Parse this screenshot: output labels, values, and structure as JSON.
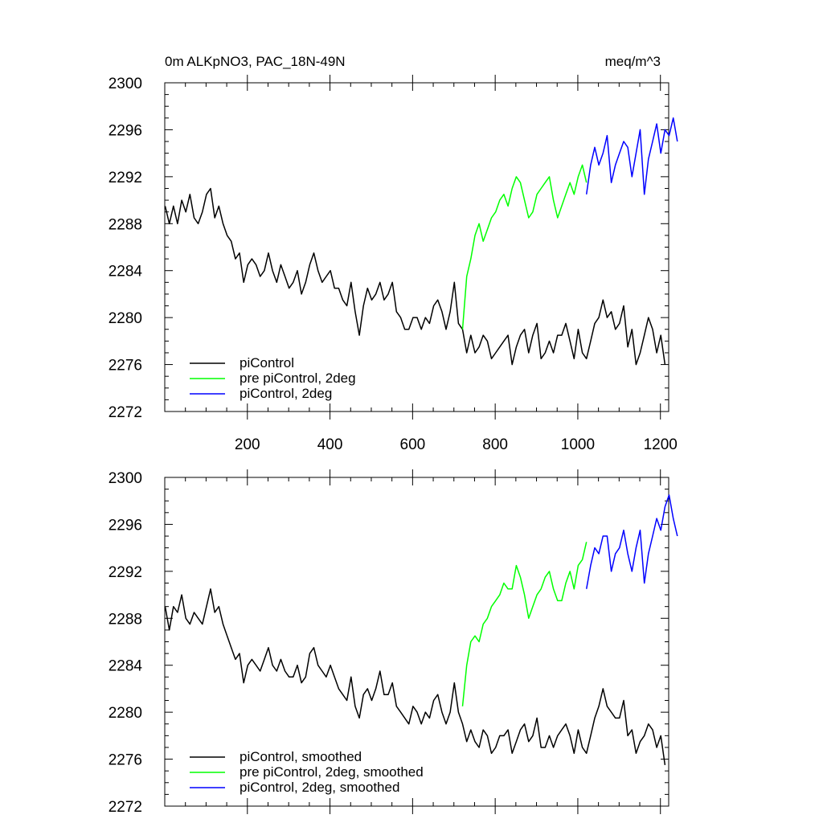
{
  "figure": {
    "title_left": "0m ALKpNO3, PAC_18N-49N",
    "title_right": "meq/m^3"
  },
  "chart_data": [
    {
      "type": "line",
      "panel": "top",
      "title": "0m ALKpNO3, PAC_18N-49N",
      "units": "meq/m^3",
      "xlim": [
        0,
        1220
      ],
      "ylim": [
        2272,
        2300
      ],
      "x_ticks": [
        200,
        400,
        600,
        800,
        1000,
        1200
      ],
      "x_tick_labels": [
        "200",
        "400",
        "600",
        "800",
        "1000",
        "1200"
      ],
      "y_ticks": [
        2272,
        2276,
        2280,
        2284,
        2288,
        2292,
        2296,
        2300
      ],
      "y_tick_labels": [
        "2272",
        "2276",
        "2280",
        "2284",
        "2288",
        "2292",
        "2296",
        "2300"
      ],
      "legend_position": "bottom-left",
      "series": [
        {
          "name": "piControl",
          "color": "#000000",
          "x_start": 1,
          "x_step": 10,
          "values": [
            2289.5,
            2288.0,
            2289.5,
            2288.0,
            2290.0,
            2289.0,
            2290.5,
            2288.5,
            2288.0,
            2289.0,
            2290.5,
            2291.0,
            2288.5,
            2289.5,
            2288.0,
            2287.0,
            2286.5,
            2285.0,
            2285.5,
            2283.0,
            2284.5,
            2285.0,
            2284.5,
            2283.5,
            2284.0,
            2285.5,
            2284.0,
            2283.0,
            2284.5,
            2283.5,
            2282.5,
            2283.0,
            2284.0,
            2282.0,
            2283.0,
            2284.5,
            2285.5,
            2284.0,
            2283.0,
            2283.5,
            2284.0,
            2282.5,
            2282.5,
            2281.5,
            2281.0,
            2283.0,
            2280.5,
            2278.5,
            2281.0,
            2282.5,
            2281.5,
            2282.0,
            2283.0,
            2281.5,
            2282.0,
            2283.0,
            2280.5,
            2280.0,
            2279.0,
            2279.0,
            2280.0,
            2280.0,
            2279.0,
            2280.0,
            2279.5,
            2281.0,
            2281.5,
            2280.5,
            2279.0,
            2280.5,
            2283.0,
            2279.5,
            2279.0,
            2277.0,
            2278.5,
            2277.0,
            2277.5,
            2278.5,
            2278.0,
            2276.5,
            2277.0,
            2277.5,
            2278.0,
            2278.5,
            2276.0,
            2277.5,
            2278.5,
            2279.0,
            2277.0,
            2278.5,
            2279.5,
            2276.5,
            2277.0,
            2278.0,
            2277.0,
            2278.5,
            2278.5,
            2279.5,
            2278.0,
            2276.5,
            2279.0,
            2277.0,
            2276.5,
            2278.0,
            2279.5,
            2280.0,
            2281.5,
            2280.0,
            2280.5,
            2279.0,
            2279.5,
            2281.0,
            2277.5,
            2279.0,
            2276.0,
            2277.0,
            2278.5,
            2280.0,
            2279.0,
            2277.0,
            2278.5,
            2276.0
          ]
        },
        {
          "name": "pre piControl, 2deg",
          "color": "#00ff00",
          "x_start": 721,
          "x_step": 10,
          "values": [
            2279.0,
            2283.5,
            2285.0,
            2287.0,
            2288.0,
            2286.5,
            2287.5,
            2288.5,
            2289.0,
            2290.0,
            2290.5,
            2289.5,
            2291.0,
            2292.0,
            2291.5,
            2290.0,
            2288.5,
            2289.0,
            2290.5,
            2291.0,
            2291.5,
            2292.0,
            2290.0,
            2288.5,
            2289.5,
            2290.5,
            2291.5,
            2290.5,
            2292.0,
            2293.0,
            2291.5
          ]
        },
        {
          "name": "piControl, 2deg",
          "color": "#0000ff",
          "x_start": 1021,
          "x_step": 10,
          "values": [
            2290.5,
            2293.0,
            2294.5,
            2293.0,
            2294.0,
            2295.5,
            2291.5,
            2293.0,
            2294.0,
            2295.0,
            2294.5,
            2292.0,
            2294.0,
            2296.0,
            2290.5,
            2293.5,
            2295.0,
            2296.5,
            2294.0,
            2296.0,
            2295.5,
            2297.0,
            2295.0
          ]
        }
      ]
    },
    {
      "type": "line",
      "panel": "bottom",
      "xlim": [
        0,
        1220
      ],
      "ylim": [
        2272,
        2300
      ],
      "y_ticks": [
        2272,
        2276,
        2280,
        2284,
        2288,
        2292,
        2296,
        2300
      ],
      "y_tick_labels": [
        "2272",
        "2276",
        "2280",
        "2284",
        "2288",
        "2292",
        "2296",
        "2300"
      ],
      "legend_position": "bottom-left",
      "series": [
        {
          "name": "piControl, smoothed",
          "color": "#000000",
          "x_start": 1,
          "x_step": 10,
          "values": [
            2289.0,
            2287.0,
            2289.0,
            2288.5,
            2290.0,
            2288.0,
            2287.5,
            2288.5,
            2288.0,
            2287.5,
            2289.0,
            2290.5,
            2288.5,
            2289.0,
            2287.5,
            2286.5,
            2285.5,
            2284.5,
            2285.0,
            2282.5,
            2284.0,
            2284.5,
            2284.0,
            2283.5,
            2284.5,
            2285.5,
            2284.0,
            2283.5,
            2284.5,
            2283.5,
            2283.0,
            2283.0,
            2284.0,
            2282.5,
            2283.0,
            2285.0,
            2285.5,
            2284.0,
            2283.5,
            2283.0,
            2284.0,
            2283.0,
            2282.0,
            2281.5,
            2281.0,
            2283.0,
            2280.5,
            2279.5,
            2281.5,
            2282.0,
            2281.0,
            2282.0,
            2283.5,
            2281.5,
            2281.5,
            2282.5,
            2280.5,
            2280.0,
            2279.5,
            2279.0,
            2280.5,
            2280.0,
            2279.0,
            2280.0,
            2279.5,
            2281.0,
            2281.5,
            2280.0,
            2279.0,
            2280.0,
            2282.5,
            2280.0,
            2279.0,
            2277.5,
            2278.5,
            2277.5,
            2277.0,
            2278.5,
            2278.0,
            2276.5,
            2277.0,
            2278.0,
            2278.0,
            2278.5,
            2276.5,
            2277.5,
            2278.5,
            2279.0,
            2277.5,
            2278.0,
            2279.5,
            2277.0,
            2277.0,
            2278.0,
            2277.0,
            2278.0,
            2278.5,
            2279.0,
            2278.0,
            2276.5,
            2278.5,
            2277.0,
            2276.5,
            2278.0,
            2279.5,
            2280.5,
            2282.0,
            2280.5,
            2280.0,
            2279.5,
            2279.5,
            2281.0,
            2278.0,
            2278.5,
            2276.5,
            2277.5,
            2278.0,
            2279.0,
            2278.5,
            2277.0,
            2278.0,
            2275.5
          ]
        },
        {
          "name": "pre piControl, 2deg, smoothed",
          "color": "#00ff00",
          "x_start": 721,
          "x_step": 10,
          "values": [
            2280.5,
            2284.0,
            2286.0,
            2286.5,
            2286.0,
            2287.5,
            2288.0,
            2289.0,
            2289.5,
            2290.0,
            2291.0,
            2290.5,
            2290.5,
            2292.5,
            2291.5,
            2290.0,
            2288.0,
            2289.0,
            2290.0,
            2290.5,
            2291.5,
            2292.0,
            2290.5,
            2289.5,
            2289.5,
            2291.0,
            2292.0,
            2290.5,
            2292.5,
            2293.0,
            2294.5
          ]
        },
        {
          "name": "piControl, 2deg, smoothed",
          "color": "#0000ff",
          "x_start": 1021,
          "x_step": 10,
          "values": [
            2290.5,
            2292.5,
            2294.0,
            2293.5,
            2295.0,
            2295.0,
            2292.0,
            2293.5,
            2294.0,
            2295.5,
            2293.5,
            2292.0,
            2294.0,
            2295.5,
            2291.0,
            2293.5,
            2295.0,
            2296.5,
            2295.5,
            2297.5,
            2298.5,
            2296.5,
            2295.0
          ]
        }
      ]
    }
  ]
}
